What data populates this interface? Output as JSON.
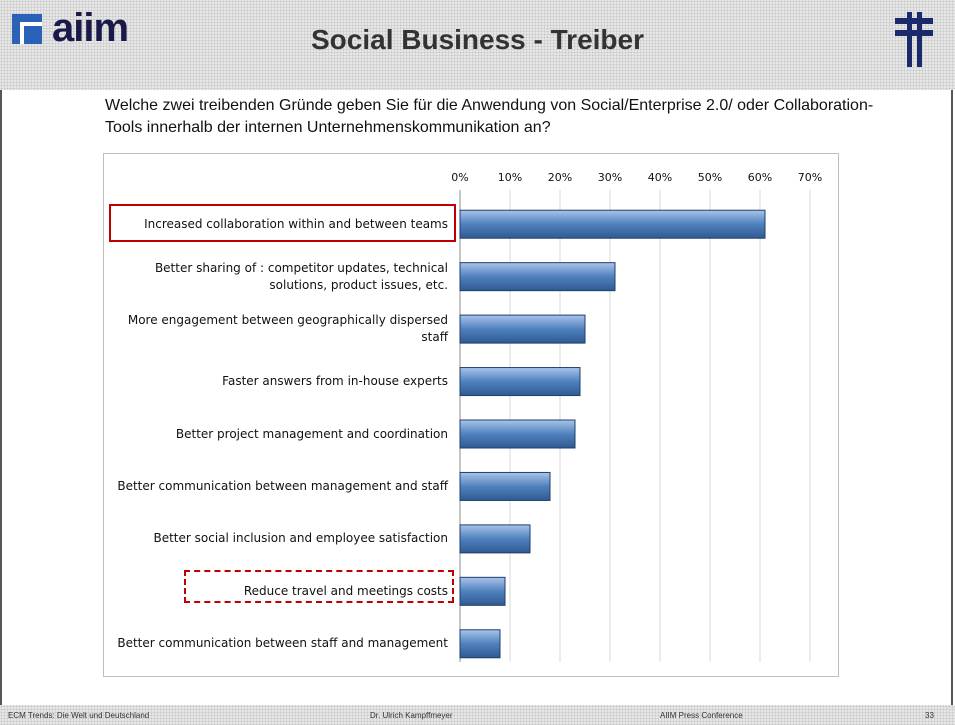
{
  "header": {
    "logo": "aiim",
    "title": "Social Business - Treiber"
  },
  "question": "Welche zwei treibenden Gründe geben Sie für die Anwendung von Social/Enterprise 2.0/ oder Collaboration-Tools innerhalb der internen Unternehmenskommunikation an?",
  "chart_data": {
    "type": "bar",
    "orientation": "horizontal",
    "color": "#4f81bd",
    "categories": [
      "Increased collaboration within and between teams",
      "Better sharing of : competitor updates, technical solutions, product issues, etc.",
      "More engagement between geographically dispersed staff",
      "Faster answers from in-house experts",
      "Better project management and coordination",
      "Better communication between management and staff",
      "Better social inclusion and employee satisfaction",
      "Reduce travel and meetings costs",
      "Better communication between staff and management"
    ],
    "values": [
      61,
      31,
      25,
      24,
      23,
      18,
      14,
      9,
      8
    ],
    "xlim": [
      0,
      70
    ],
    "xticks": [
      {
        "value": 0,
        "label": "0%"
      },
      {
        "value": 10,
        "label": "10%"
      },
      {
        "value": 20,
        "label": "20%"
      },
      {
        "value": 30,
        "label": "30%"
      },
      {
        "value": 40,
        "label": "40%"
      },
      {
        "value": 50,
        "label": "50%"
      },
      {
        "value": 60,
        "label": "60%"
      },
      {
        "value": 70,
        "label": "70%"
      }
    ],
    "grid": true
  },
  "footer": [
    "ECM Trends: Die Welt und Deutschland",
    "Dr. Ulrich Kampffmeyer",
    "AIIM Press Conference",
    "33"
  ]
}
